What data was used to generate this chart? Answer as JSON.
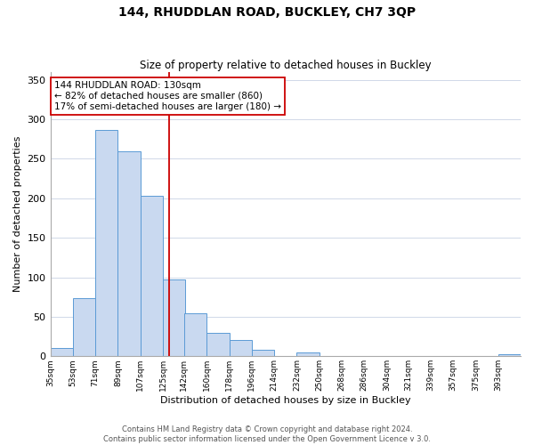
{
  "title": "144, RHUDDLAN ROAD, BUCKLEY, CH7 3QP",
  "subtitle": "Size of property relative to detached houses in Buckley",
  "xlabel": "Distribution of detached houses by size in Buckley",
  "ylabel": "Number of detached properties",
  "bin_labels": [
    "35sqm",
    "53sqm",
    "71sqm",
    "89sqm",
    "107sqm",
    "125sqm",
    "142sqm",
    "160sqm",
    "178sqm",
    "196sqm",
    "214sqm",
    "232sqm",
    "250sqm",
    "268sqm",
    "286sqm",
    "304sqm",
    "321sqm",
    "339sqm",
    "357sqm",
    "375sqm",
    "393sqm"
  ],
  "bin_edges": [
    35,
    53,
    71,
    89,
    107,
    125,
    142,
    160,
    178,
    196,
    214,
    232,
    250,
    268,
    286,
    304,
    321,
    339,
    357,
    375,
    393
  ],
  "bar_heights": [
    10,
    73,
    286,
    259,
    203,
    97,
    54,
    30,
    21,
    8,
    0,
    5,
    0,
    0,
    0,
    0,
    0,
    0,
    0,
    0,
    3
  ],
  "bar_color": "#c9d9f0",
  "bar_edge_color": "#5b9bd5",
  "vline_x": 130,
  "vline_color": "#cc0000",
  "annotation_line1": "144 RHUDDLAN ROAD: 130sqm",
  "annotation_line2": "← 82% of detached houses are smaller (860)",
  "annotation_line3": "17% of semi-detached houses are larger (180) →",
  "annotation_box_color": "#ffffff",
  "annotation_box_edge_color": "#cc0000",
  "ylim": [
    0,
    360
  ],
  "yticks": [
    0,
    50,
    100,
    150,
    200,
    250,
    300,
    350
  ],
  "footer_line1": "Contains HM Land Registry data © Crown copyright and database right 2024.",
  "footer_line2": "Contains public sector information licensed under the Open Government Licence v 3.0.",
  "background_color": "#ffffff",
  "grid_color": "#d0d8e8",
  "title_fontsize": 10,
  "subtitle_fontsize": 8.5,
  "xlabel_fontsize": 8,
  "ylabel_fontsize": 8,
  "xtick_fontsize": 6.5,
  "ytick_fontsize": 8,
  "annotation_fontsize": 7.5,
  "footer_fontsize": 6
}
